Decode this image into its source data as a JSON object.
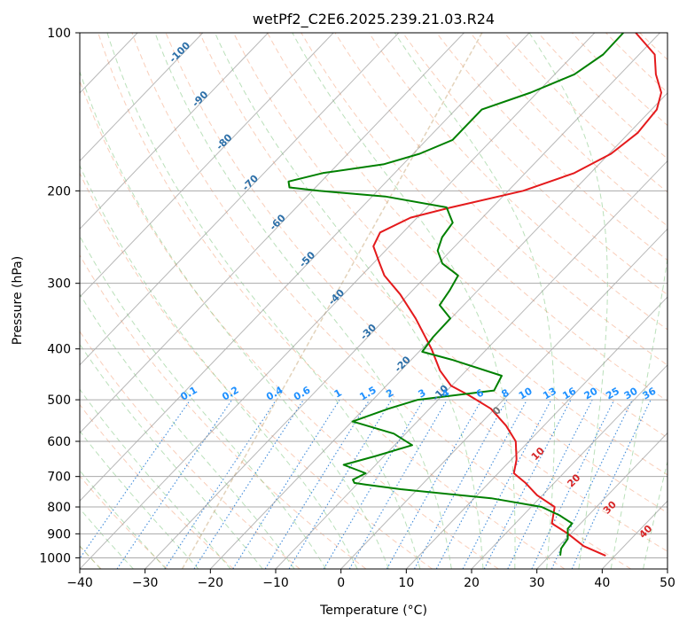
{
  "chart_data": {
    "type": "skew-t",
    "title": "wetPf2_C2E6.2025.239.21.03.R24",
    "xlabel": "Temperature (°C)",
    "ylabel": "Pressure (hPa)",
    "xlim": [
      -40,
      50
    ],
    "ylim": [
      1050,
      100
    ],
    "y_scale": "log",
    "grid": true,
    "x_ticks": [
      -40,
      -30,
      -20,
      -10,
      0,
      10,
      20,
      30,
      40,
      50
    ],
    "y_ticks": [
      100,
      200,
      300,
      400,
      500,
      600,
      700,
      800,
      900,
      1000
    ],
    "isotherm_labels": [
      {
        "value": "-100",
        "p": 110
      },
      {
        "value": "-90",
        "p": 135
      },
      {
        "value": "-80",
        "p": 163
      },
      {
        "value": "-70",
        "p": 195
      },
      {
        "value": "-60",
        "p": 232
      },
      {
        "value": "-50",
        "p": 273
      },
      {
        "value": "-40",
        "p": 322
      },
      {
        "value": "-30",
        "p": 375
      },
      {
        "value": "-20",
        "p": 432
      },
      {
        "value": "-10",
        "p": 490
      }
    ],
    "mixing_ratio_labels": [
      "0.1",
      "0.2",
      "0.4",
      "0.6",
      "1",
      "1.5",
      "2",
      "3",
      "4",
      "6",
      "8",
      "10",
      "13",
      "16",
      "20",
      "25",
      "30",
      "36"
    ],
    "mixing_ratio_values": [
      0.1,
      0.2,
      0.4,
      0.6,
      1,
      1.5,
      2,
      3,
      4,
      6,
      8,
      10,
      13,
      16,
      20,
      25,
      30,
      36
    ],
    "moist_adiabat_labels": [
      {
        "value": "0",
        "T": 24.2,
        "p": 530
      },
      {
        "value": "10",
        "T": 30.5,
        "p": 640
      },
      {
        "value": "20",
        "T": 36,
        "p": 720
      },
      {
        "value": "30",
        "T": 41.5,
        "p": 810
      },
      {
        "value": "40",
        "T": 47,
        "p": 900
      }
    ],
    "series": [
      {
        "color": "#e41a1c",
        "points": [
          [
            991,
            38.6
          ],
          [
            950,
            33.8
          ],
          [
            900,
            29.6
          ],
          [
            860,
            25.6
          ],
          [
            800,
            23.6
          ],
          [
            760,
            19.2
          ],
          [
            720,
            15.6
          ],
          [
            690,
            12.4
          ],
          [
            650,
            10.8
          ],
          [
            600,
            8.0
          ],
          [
            560,
            4.2
          ],
          [
            520,
            -0.6
          ],
          [
            490,
            -6.0
          ],
          [
            470,
            -10.1
          ],
          [
            440,
            -14.0
          ],
          [
            400,
            -18.5
          ],
          [
            350,
            -25.4
          ],
          [
            315,
            -31.3
          ],
          [
            290,
            -36.5
          ],
          [
            275,
            -39.0
          ],
          [
            255,
            -42.5
          ],
          [
            240,
            -43.5
          ],
          [
            225,
            -41.0
          ],
          [
            215,
            -36.3
          ],
          [
            200,
            -27.7
          ],
          [
            185,
            -22.5
          ],
          [
            170,
            -19.7
          ],
          [
            155,
            -18.7
          ],
          [
            140,
            -19.2
          ],
          [
            130,
            -21.0
          ],
          [
            120,
            -24.5
          ],
          [
            110,
            -27.6
          ],
          [
            100,
            -33.7
          ]
        ]
      },
      {
        "color": "#008000",
        "points": [
          [
            990,
            31.6
          ],
          [
            960,
            30.7
          ],
          [
            920,
            30.3
          ],
          [
            880,
            28.8
          ],
          [
            860,
            28.7
          ],
          [
            830,
            25.6
          ],
          [
            800,
            21.6
          ],
          [
            770,
            12.6
          ],
          [
            740,
            -2.6
          ],
          [
            725,
            -8.7
          ],
          [
            720,
            -10.6
          ],
          [
            710,
            -11.3
          ],
          [
            690,
            -10.3
          ],
          [
            665,
            -14.9
          ],
          [
            640,
            -11.3
          ],
          [
            610,
            -7.3
          ],
          [
            580,
            -11.8
          ],
          [
            550,
            -19.9
          ],
          [
            520,
            -16.3
          ],
          [
            500,
            -13.1
          ],
          [
            480,
            -2.8
          ],
          [
            450,
            -3.8
          ],
          [
            420,
            -13.6
          ],
          [
            405,
            -19.5
          ],
          [
            380,
            -20.0
          ],
          [
            350,
            -20.1
          ],
          [
            330,
            -23.7
          ],
          [
            310,
            -24.3
          ],
          [
            290,
            -25.2
          ],
          [
            275,
            -29.4
          ],
          [
            260,
            -32.0
          ],
          [
            245,
            -33.3
          ],
          [
            230,
            -33.8
          ],
          [
            215,
            -37.0
          ],
          [
            205,
            -48.0
          ],
          [
            200,
            -59.0
          ],
          [
            197,
            -64.0
          ],
          [
            192,
            -65.0
          ],
          [
            185,
            -61.0
          ],
          [
            178,
            -53.0
          ],
          [
            170,
            -49.0
          ],
          [
            160,
            -46.0
          ],
          [
            150,
            -46.0
          ],
          [
            140,
            -46.0
          ],
          [
            130,
            -41.0
          ],
          [
            120,
            -37.0
          ],
          [
            110,
            -35.5
          ],
          [
            100,
            -35.6
          ]
        ]
      }
    ]
  }
}
